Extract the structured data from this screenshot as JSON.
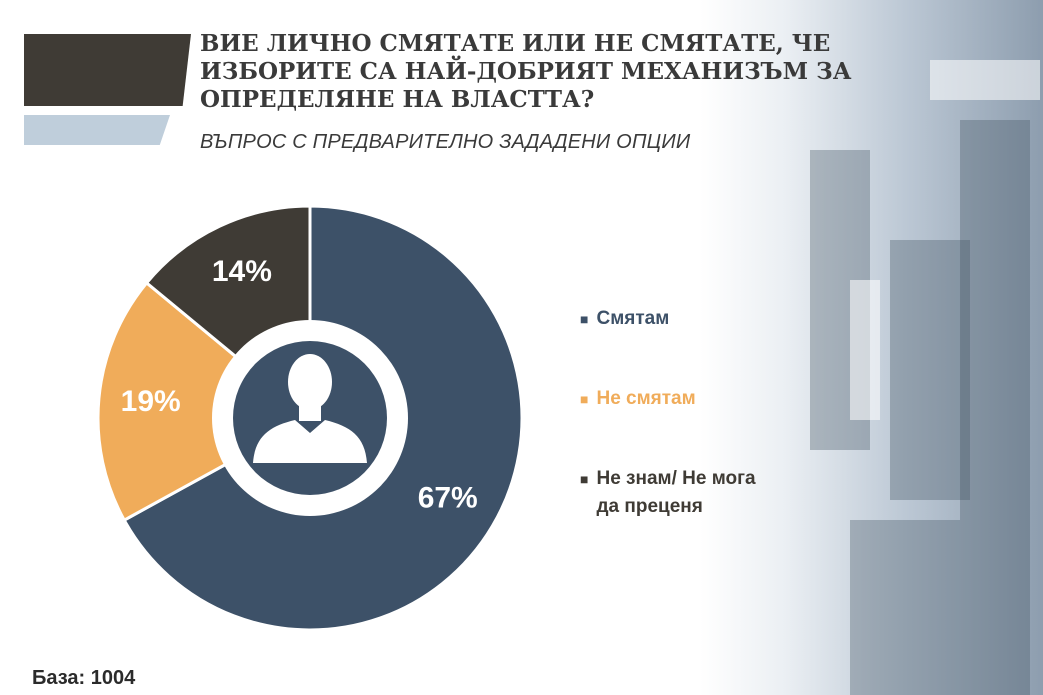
{
  "header": {
    "title": "ВИЕ ЛИЧНО СМЯТАТЕ ИЛИ НЕ СМЯТАТЕ, ЧЕ\nИЗБОРИТЕ СА НАЙ-ДОБРИЯТ МЕХАНИЗЪМ ЗА\nОПРЕДЕЛЯНЕ НА ВЛАСТТА?",
    "subtitle": "ВЪПРОС С ПРЕДВАРИТЕЛНО ЗАДАДЕНИ ОПЦИИ"
  },
  "colors": {
    "dark_bar": "#3f3b35",
    "light_bar": "#bfcedb"
  },
  "center_icon": "person-silhouette-icon",
  "chart_data": {
    "type": "pie",
    "style": "donut",
    "categories": [
      "Смятам",
      "Не смятам",
      "Не знам/ Не мога\nда преценя"
    ],
    "values": [
      67,
      19,
      14
    ],
    "labels": [
      "67%",
      "19%",
      "14%"
    ],
    "colors": [
      "#3d5168",
      "#f0ac5a",
      "#3f3b35"
    ],
    "legend_text_colors": [
      "#3d5168",
      "#f0ac5a",
      "#3f3b35"
    ],
    "legend_position": "right"
  },
  "footer": {
    "base": "База: 1004"
  }
}
